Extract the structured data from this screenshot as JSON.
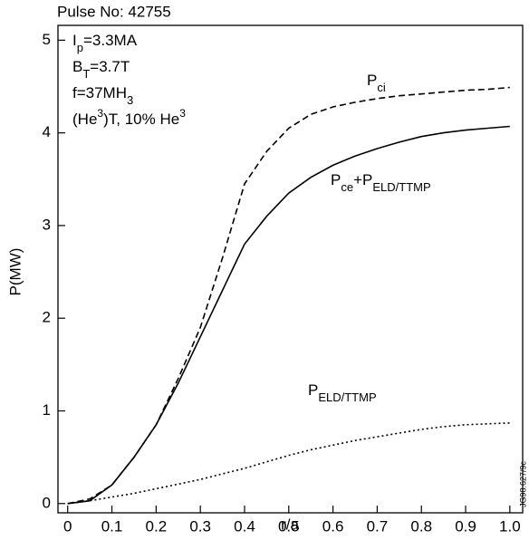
{
  "chart_data": {
    "type": "line",
    "title": "Pulse No: 42755",
    "x_label": "r/a",
    "y_label": "P(MW)",
    "side_label": "JG98.627/9c",
    "annotations": [
      [
        {
          "text": "I"
        },
        {
          "text": "p",
          "sub": true
        },
        {
          "text": "=3.3MA"
        }
      ],
      [
        {
          "text": "B"
        },
        {
          "text": "T",
          "sub": true
        },
        {
          "text": "=3.7T"
        }
      ],
      [
        {
          "text": "f=37MH"
        },
        {
          "text": "3",
          "sub": true
        }
      ],
      [
        {
          "text": "(He"
        },
        {
          "text": "3",
          "sup": true
        },
        {
          "text": ")T, 10% He"
        },
        {
          "text": "3",
          "sup": true
        }
      ]
    ],
    "x": [
      0,
      0.05,
      0.1,
      0.15,
      0.2,
      0.25,
      0.3,
      0.35,
      0.4,
      0.45,
      0.5,
      0.55,
      0.6,
      0.65,
      0.7,
      0.75,
      0.8,
      0.85,
      0.9,
      0.95,
      1.0
    ],
    "series": [
      {
        "name": [
          {
            "text": "P"
          },
          {
            "text": "ci",
            "sub": true
          }
        ],
        "color": "#000000",
        "dash": "dashed",
        "values": [
          0,
          0.05,
          0.2,
          0.5,
          0.85,
          1.35,
          1.9,
          2.65,
          3.45,
          3.8,
          4.05,
          4.2,
          4.28,
          4.33,
          4.37,
          4.4,
          4.42,
          4.44,
          4.46,
          4.47,
          4.49
        ]
      },
      {
        "name": [
          {
            "text": "P"
          },
          {
            "text": "ce",
            "sub": true
          },
          {
            "text": "+P"
          },
          {
            "text": "ELD/TTMP",
            "sub": true
          }
        ],
        "color": "#000000",
        "dash": "solid",
        "values": [
          0,
          0.03,
          0.2,
          0.5,
          0.85,
          1.3,
          1.8,
          2.3,
          2.8,
          3.1,
          3.35,
          3.52,
          3.65,
          3.75,
          3.83,
          3.9,
          3.96,
          4.0,
          4.03,
          4.05,
          4.07
        ]
      },
      {
        "name": [
          {
            "text": "P"
          },
          {
            "text": "ELD/TTMP",
            "sub": true
          }
        ],
        "color": "#000000",
        "dash": "dotted",
        "values": [
          0,
          0.03,
          0.07,
          0.11,
          0.16,
          0.21,
          0.26,
          0.32,
          0.38,
          0.45,
          0.52,
          0.58,
          0.63,
          0.68,
          0.72,
          0.76,
          0.8,
          0.83,
          0.85,
          0.86,
          0.87
        ]
      }
    ],
    "xlim": [
      -0.022,
      1.029
    ],
    "ylim": [
      -0.1,
      5.16
    ],
    "xticks": [
      0,
      0.1,
      0.2,
      0.3,
      0.4,
      0.5,
      0.6,
      0.7,
      0.8,
      0.9,
      {
        "value": 1,
        "label": "1.0"
      }
    ],
    "yticks": [
      0,
      1,
      2,
      3,
      4,
      5
    ]
  }
}
